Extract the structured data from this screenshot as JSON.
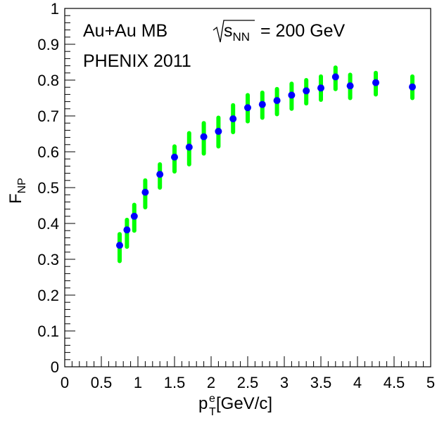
{
  "chart_data": {
    "type": "scatter",
    "title": "",
    "annotations": {
      "line1_prefix": "Au+Au  MB",
      "sqrt_var": "s",
      "sqrt_sub": "NN",
      "line1_suffix": "= 200 GeV",
      "line2": "PHENIX 2011"
    },
    "xlabel": {
      "main": "p",
      "sup": "e",
      "sub": "T",
      "rest": " [GeV/c]"
    },
    "ylabel": {
      "main": "F",
      "sub": "NP"
    },
    "xlim": [
      0,
      5
    ],
    "ylim": [
      0,
      1
    ],
    "x_ticks": [
      "0",
      "0.5",
      "1",
      "1.5",
      "2",
      "2.5",
      "3",
      "3.5",
      "4",
      "4.5",
      "5"
    ],
    "y_ticks": [
      "0",
      "0.1",
      "0.2",
      "0.3",
      "0.4",
      "0.5",
      "0.6",
      "0.7",
      "0.8",
      "0.9",
      "1"
    ],
    "grid": false,
    "legend": "none",
    "series": [
      {
        "marker_color": "#0000ff",
        "error_color": "#00ff00",
        "points": [
          {
            "x": 0.75,
            "y": 0.339,
            "lo": 0.295,
            "hi": 0.37
          },
          {
            "x": 0.85,
            "y": 0.382,
            "lo": 0.335,
            "hi": 0.41
          },
          {
            "x": 0.95,
            "y": 0.42,
            "lo": 0.38,
            "hi": 0.452
          },
          {
            "x": 1.1,
            "y": 0.487,
            "lo": 0.445,
            "hi": 0.52
          },
          {
            "x": 1.3,
            "y": 0.537,
            "lo": 0.5,
            "hi": 0.565
          },
          {
            "x": 1.5,
            "y": 0.585,
            "lo": 0.545,
            "hi": 0.615
          },
          {
            "x": 1.7,
            "y": 0.613,
            "lo": 0.565,
            "hi": 0.652
          },
          {
            "x": 1.9,
            "y": 0.642,
            "lo": 0.595,
            "hi": 0.68
          },
          {
            "x": 2.1,
            "y": 0.657,
            "lo": 0.615,
            "hi": 0.695
          },
          {
            "x": 2.3,
            "y": 0.692,
            "lo": 0.655,
            "hi": 0.73
          },
          {
            "x": 2.5,
            "y": 0.723,
            "lo": 0.685,
            "hi": 0.758
          },
          {
            "x": 2.7,
            "y": 0.732,
            "lo": 0.695,
            "hi": 0.765
          },
          {
            "x": 2.9,
            "y": 0.743,
            "lo": 0.705,
            "hi": 0.775
          },
          {
            "x": 3.1,
            "y": 0.758,
            "lo": 0.72,
            "hi": 0.79
          },
          {
            "x": 3.3,
            "y": 0.77,
            "lo": 0.735,
            "hi": 0.8
          },
          {
            "x": 3.5,
            "y": 0.778,
            "lo": 0.745,
            "hi": 0.81
          },
          {
            "x": 3.7,
            "y": 0.809,
            "lo": 0.775,
            "hi": 0.835
          },
          {
            "x": 3.9,
            "y": 0.784,
            "lo": 0.75,
            "hi": 0.815
          },
          {
            "x": 4.25,
            "y": 0.793,
            "lo": 0.76,
            "hi": 0.82
          },
          {
            "x": 4.75,
            "y": 0.781,
            "lo": 0.75,
            "hi": 0.81
          }
        ]
      }
    ]
  }
}
